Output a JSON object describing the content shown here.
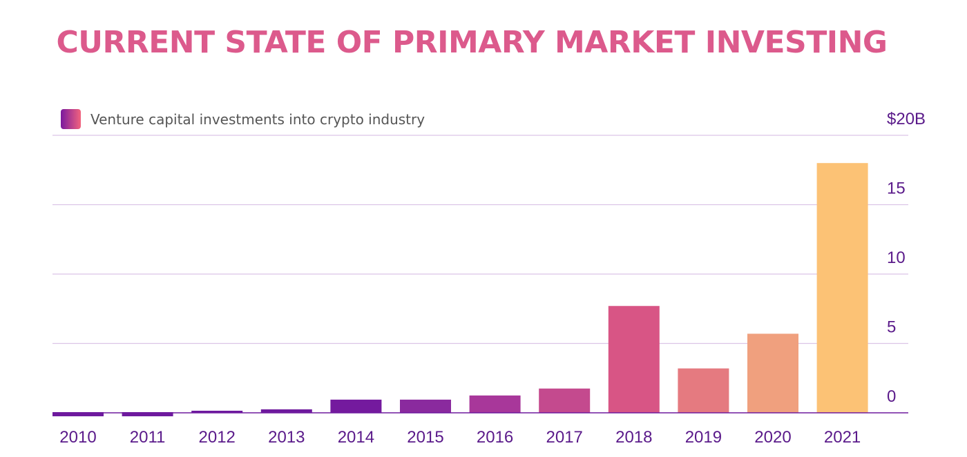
{
  "chart_data": {
    "type": "bar",
    "title": "CURRENT STATE OF PRIMARY MARKET INVESTING",
    "legend": [
      {
        "name": "Venture capital investments into crypto industry",
        "color_from": "#7a1a9e",
        "color_to": "#f2637e"
      }
    ],
    "legend_placement": "top-left",
    "categories": [
      "2010",
      "2011",
      "2012",
      "2013",
      "2014",
      "2015",
      "2016",
      "2017",
      "2018",
      "2019",
      "2020",
      "2021"
    ],
    "series": [
      {
        "name": "Venture capital investments into crypto industry",
        "values": [
          -0.2,
          -0.2,
          0.15,
          0.25,
          0.95,
          0.95,
          1.25,
          1.75,
          7.7,
          3.2,
          5.7,
          18.0
        ],
        "colors": [
          "#6e1a9e",
          "#6e1a9e",
          "#6e1a9e",
          "#6e1a9e",
          "#741a9e",
          "#8a2a9e",
          "#a8379a",
          "#c44a8e",
          "#d85585",
          "#e57a80",
          "#f0a07e",
          "#fcc275"
        ]
      }
    ],
    "ylim": [
      0,
      20
    ],
    "y_ticks": [
      0,
      5,
      10,
      15,
      20
    ],
    "y_tick_labels": [
      "0",
      "5",
      "10",
      "15",
      "$20B"
    ],
    "y_axis_side": "right",
    "grid": true,
    "colors": {
      "title": "#dc5a8c",
      "axis_text": "#5a1a8a",
      "grid": "#dcc4e6",
      "baseline": "#6e1a9e"
    }
  }
}
